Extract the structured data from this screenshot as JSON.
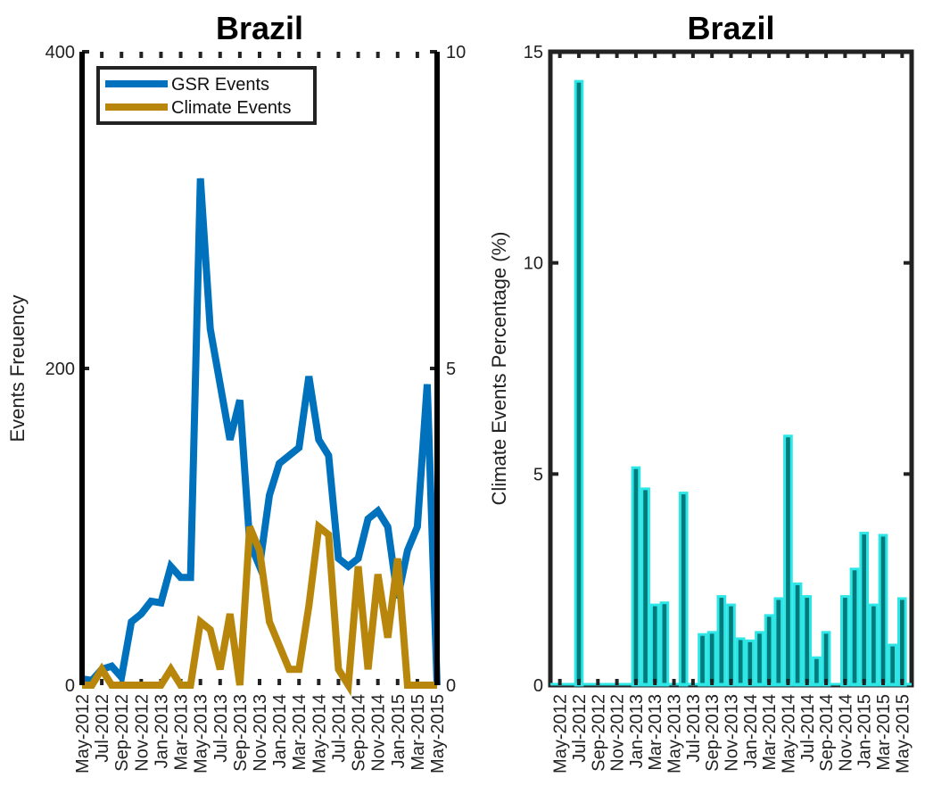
{
  "chart_data": [
    {
      "type": "line",
      "title": "Brazil",
      "ylabel": "Events Freuency",
      "ylabel_right": "",
      "ylim": [
        0,
        400
      ],
      "ylim_right": [
        0,
        10
      ],
      "yticks": [
        "0",
        "200",
        "400"
      ],
      "yticks_right": [
        "0",
        "5",
        "10"
      ],
      "grid": false,
      "legend_position": "top-left",
      "x": [
        "May-2012",
        "Jun-2012",
        "Jul-2012",
        "Aug-2012",
        "Sep-2012",
        "Oct-2012",
        "Nov-2012",
        "Dec-2012",
        "Jan-2013",
        "Feb-2013",
        "Mar-2013",
        "Apr-2013",
        "May-2013",
        "Jun-2013",
        "Jul-2013",
        "Aug-2013",
        "Sep-2013",
        "Oct-2013",
        "Nov-2013",
        "Dec-2013",
        "Jan-2014",
        "Feb-2014",
        "Mar-2014",
        "Apr-2014",
        "May-2014",
        "Jun-2014",
        "Jul-2014",
        "Aug-2014",
        "Sep-2014",
        "Oct-2014",
        "Nov-2014",
        "Dec-2014",
        "Jan-2015",
        "Feb-2015",
        "Mar-2015",
        "Apr-2015",
        "May-2015"
      ],
      "xtick_labels": [
        "May-2012",
        "Jul-2012",
        "Sep-2012",
        "Nov-2012",
        "Jan-2013",
        "Mar-2013",
        "May-2013",
        "Jul-2013",
        "Sep-2013",
        "Nov-2013",
        "Jan-2014",
        "Mar-2014",
        "May-2014",
        "Jul-2014",
        "Sep-2014",
        "Nov-2014",
        "Jan-2015",
        "Mar-2015",
        "May-2015"
      ],
      "series": [
        {
          "name": "GSR Events",
          "color": "#0072bd",
          "axis": "left",
          "values": [
            4,
            3,
            10,
            12,
            5,
            40,
            45,
            53,
            52,
            75,
            68,
            68,
            320,
            225,
            190,
            155,
            180,
            90,
            75,
            120,
            140,
            145,
            150,
            195,
            155,
            145,
            80,
            75,
            80,
            105,
            110,
            100,
            55,
            85,
            100,
            190,
            0
          ]
        },
        {
          "name": "Climate Events",
          "color": "#b8860b",
          "axis": "left",
          "values": [
            0,
            0,
            10,
            0,
            0,
            0,
            0,
            0,
            0,
            10,
            0,
            0,
            40,
            35,
            10,
            45,
            0,
            100,
            85,
            40,
            25,
            10,
            10,
            50,
            100,
            95,
            10,
            0,
            75,
            10,
            70,
            30,
            80,
            0,
            0,
            0,
            0
          ]
        }
      ]
    },
    {
      "type": "bar",
      "title": "Brazil",
      "ylabel": "Climate Events Percentage (%)",
      "ylim": [
        0,
        15
      ],
      "yticks": [
        "0",
        "5",
        "10",
        "15"
      ],
      "grid": false,
      "bar_color": "#007a7a",
      "bar_edge_color": "#2ee6e6",
      "categories": [
        "May-2012",
        "Jun-2012",
        "Jul-2012",
        "Aug-2012",
        "Sep-2012",
        "Oct-2012",
        "Nov-2012",
        "Dec-2012",
        "Jan-2013",
        "Feb-2013",
        "Mar-2013",
        "Apr-2013",
        "May-2013",
        "Jun-2013",
        "Jul-2013",
        "Aug-2013",
        "Sep-2013",
        "Oct-2013",
        "Nov-2013",
        "Dec-2013",
        "Jan-2014",
        "Feb-2014",
        "Mar-2014",
        "Apr-2014",
        "May-2014",
        "Jun-2014",
        "Jul-2014",
        "Aug-2014",
        "Sep-2014",
        "Oct-2014",
        "Nov-2014",
        "Dec-2014",
        "Jan-2015",
        "Feb-2015",
        "Mar-2015",
        "Apr-2015",
        "May-2015"
      ],
      "xtick_labels": [
        "May-2012",
        "Jul-2012",
        "Sep-2012",
        "Nov-2012",
        "Jan-2013",
        "Mar-2013",
        "May-2013",
        "Jul-2013",
        "Sep-2013",
        "Nov-2013",
        "Jan-2014",
        "Mar-2014",
        "May-2014",
        "Jul-2014",
        "Sep-2014",
        "Nov-2014",
        "Jan-2015",
        "Mar-2015",
        "May-2015"
      ],
      "values": [
        0,
        0,
        14.3,
        0,
        0,
        0,
        0,
        0,
        5.15,
        4.65,
        1.9,
        1.95,
        0,
        4.55,
        0,
        1.2,
        1.25,
        2.1,
        1.9,
        1.1,
        1.05,
        1.25,
        1.65,
        2.05,
        5.9,
        2.4,
        2.1,
        0.65,
        1.25,
        0,
        2.1,
        2.75,
        3.6,
        1.9,
        3.55,
        0.95,
        2.05
      ]
    }
  ]
}
